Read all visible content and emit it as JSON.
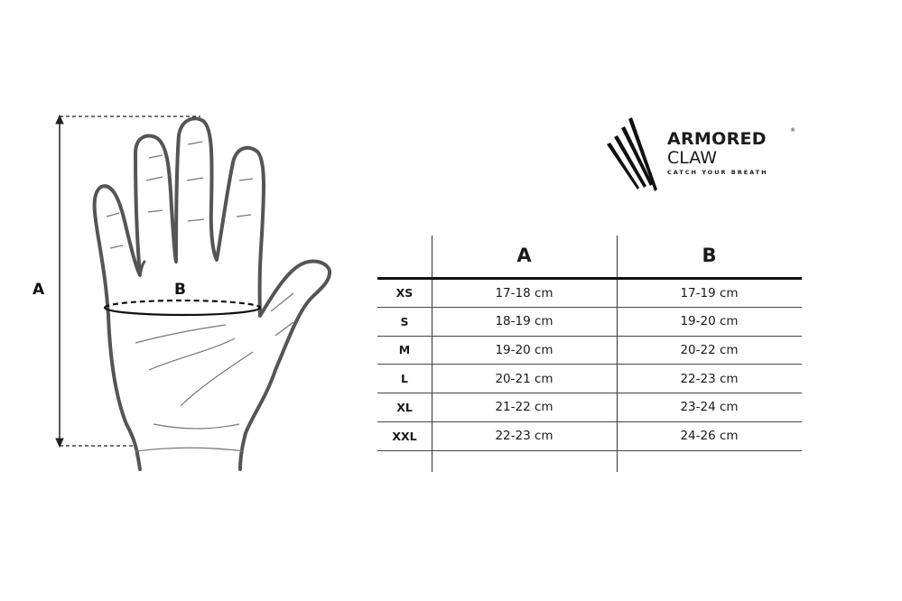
{
  "diagram": {
    "label_a": "A",
    "label_b": "B"
  },
  "logo": {
    "line1": "ARMORED",
    "line2": "CLAW",
    "tagline": "CATCH YOUR BREATH",
    "registered": "®"
  },
  "table": {
    "headers": [
      "",
      "A",
      "B"
    ],
    "rows": [
      {
        "size": "XS",
        "a": "17-18 cm",
        "b": "17-19 cm"
      },
      {
        "size": "S",
        "a": "18-19 cm",
        "b": "19-20 cm"
      },
      {
        "size": "M",
        "a": "19-20 cm",
        "b": "20-22 cm"
      },
      {
        "size": "L",
        "a": "20-21 cm",
        "b": "22-23 cm"
      },
      {
        "size": "XL",
        "a": "21-22 cm",
        "b": "23-24 cm"
      },
      {
        "size": "XXL",
        "a": "22-23 cm",
        "b": "24-26 cm"
      }
    ]
  }
}
